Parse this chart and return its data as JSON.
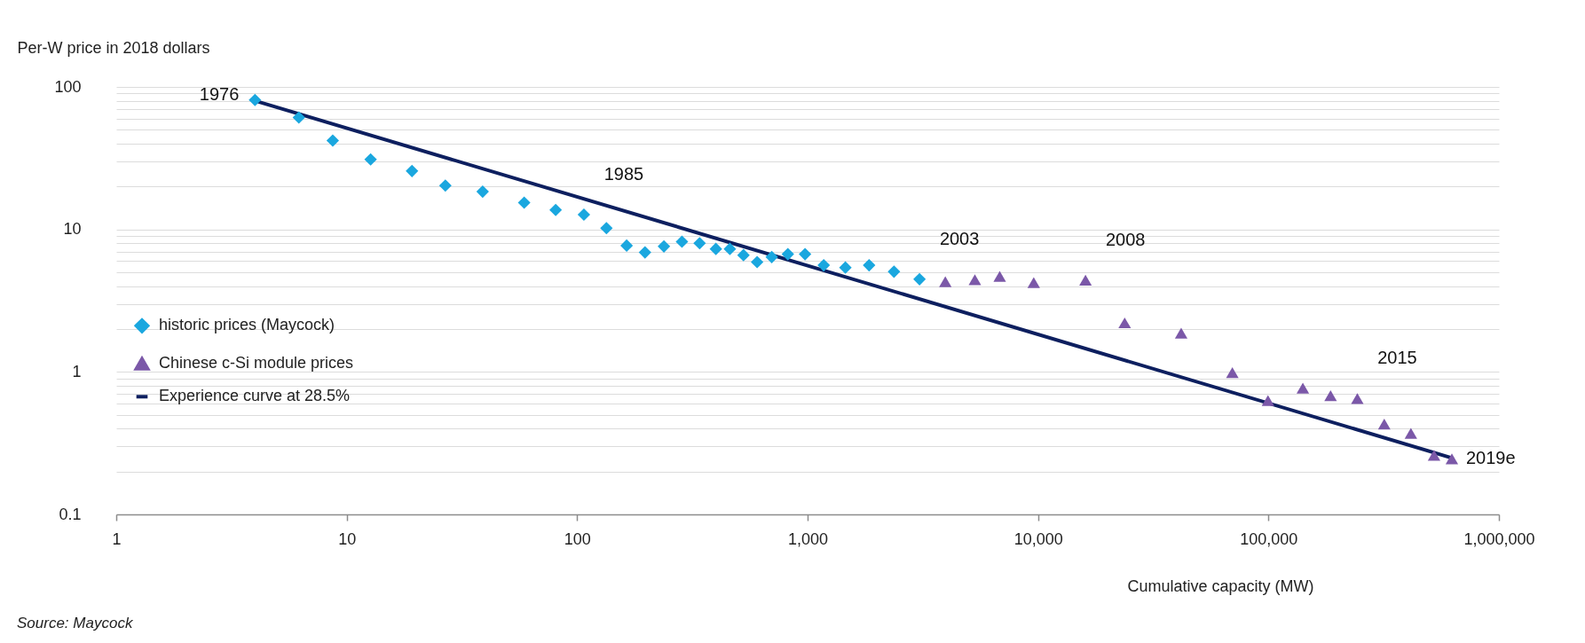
{
  "chart_data": {
    "type": "scatter",
    "xlabel": "Cumulative capacity (MW)",
    "ylabel": "Per-W price in 2018 dollars",
    "log": "xy",
    "grid": "y",
    "legend": "bottom left",
    "xlim": [
      1,
      1000000
    ],
    "xticks": [
      1,
      10,
      100,
      {
        "value": 1000,
        "label": "1,000"
      },
      {
        "value": 10000,
        "label": "10,000"
      },
      {
        "value": 100000,
        "label": "100,000"
      },
      {
        "value": 1000000,
        "label": "1,000,000"
      }
    ],
    "ylim": [
      0.1,
      100
    ],
    "yticks": [
      0.1,
      {
        "value": 0.2,
        "label": null
      },
      {
        "value": 0.3,
        "label": null
      },
      {
        "value": 0.4,
        "label": null
      },
      {
        "value": 0.5,
        "label": null
      },
      {
        "value": 0.6,
        "label": null
      },
      {
        "value": 0.7,
        "label": null
      },
      {
        "value": 0.8,
        "label": null
      },
      {
        "value": 0.9,
        "label": null
      },
      1,
      {
        "value": 2,
        "label": null
      },
      {
        "value": 3,
        "label": null
      },
      {
        "value": 4,
        "label": null
      },
      {
        "value": 5,
        "label": null
      },
      {
        "value": 6,
        "label": null
      },
      {
        "value": 7,
        "label": null
      },
      {
        "value": 8,
        "label": null
      },
      {
        "value": 9,
        "label": null
      },
      10,
      {
        "value": 20,
        "label": null
      },
      {
        "value": 30,
        "label": null
      },
      {
        "value": 40,
        "label": null
      },
      {
        "value": 50,
        "label": null
      },
      {
        "value": 60,
        "label": null
      },
      {
        "value": 70,
        "label": null
      },
      {
        "value": 80,
        "label": null
      },
      {
        "value": 90,
        "label": null
      },
      100
    ],
    "series": [
      {
        "name": "historic prices (Maycock)",
        "marker": "diamond",
        "color": "#1aa7df",
        "x": [
          4,
          6.2,
          8.7,
          12.7,
          19.2,
          26.8,
          38.9,
          58.9,
          80.7,
          107,
          134,
          164,
          197,
          238,
          285,
          340,
          400,
          460,
          527,
          604,
          699,
          821,
          975,
          1175,
          1459,
          1849,
          2371,
          3060
        ],
        "values": [
          81,
          61,
          42,
          31,
          25.7,
          20.3,
          18.4,
          15.4,
          13.7,
          12.7,
          10.2,
          7.7,
          6.9,
          7.6,
          8.2,
          8.0,
          7.3,
          7.3,
          6.6,
          5.9,
          6.4,
          6.7,
          6.7,
          5.6,
          5.4,
          5.6,
          5.05,
          4.47
        ]
      },
      {
        "name": "Chinese c-Si module prices",
        "marker": "triangle",
        "color": "#7b58a8",
        "x": [
          3960,
          5320,
          6820,
          9580,
          16070,
          23770,
          41800,
          69700,
          99500,
          141000,
          186000,
          243000,
          318000,
          415000,
          523000,
          625000
        ],
        "values": [
          4.3,
          4.43,
          4.68,
          4.24,
          4.4,
          2.21,
          1.87,
          0.99,
          0.63,
          0.77,
          0.68,
          0.65,
          0.43,
          0.37,
          0.26,
          0.245
        ]
      },
      {
        "name": "Experience curve at 28.5%",
        "type": "line",
        "line_style": "solid",
        "color": "#0d1f5f",
        "x": [
          4,
          620000
        ],
        "values": [
          80,
          0.25
        ]
      }
    ],
    "annotations": [
      {
        "text": "1976",
        "x": 4,
        "y": 81
      },
      {
        "text": "1985",
        "x": 107,
        "y": 12.7
      },
      {
        "text": "2003",
        "x": 3060,
        "y": 4.47
      },
      {
        "text": "2008",
        "x": 16070,
        "y": 4.4
      },
      {
        "text": "2015",
        "x": 243000,
        "y": 0.65
      },
      {
        "text": "2019e",
        "x": 625000,
        "y": 0.245
      },
      "Source: Maycock"
    ]
  }
}
